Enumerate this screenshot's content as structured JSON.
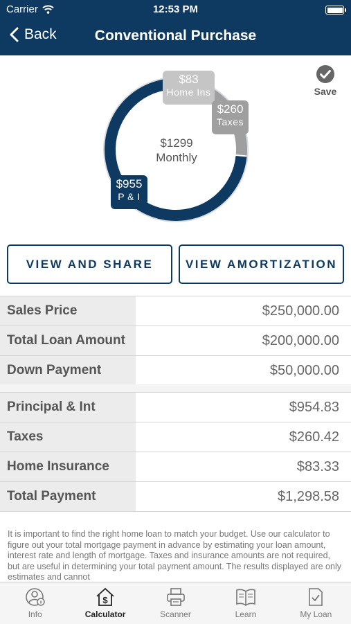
{
  "status_bar": {
    "carrier": "Carrier",
    "time": "12:53 PM"
  },
  "nav": {
    "back_label": "Back",
    "title": "Conventional Purchase"
  },
  "save_label": "Save",
  "summary": {
    "monthly_amount": "$1299",
    "monthly_label": "Monthly",
    "segments": [
      {
        "label": "P & I",
        "amount": "$955",
        "value": 954.83,
        "color": "#0e3a62"
      },
      {
        "label": "Taxes",
        "amount": "$260",
        "value": 260.42,
        "color": "#9f9f9f"
      },
      {
        "label": "Home Ins",
        "amount": "$83",
        "value": 83.33,
        "color": "#c5c5c5"
      }
    ]
  },
  "buttons": {
    "view_share": "VIEW AND SHARE",
    "view_amortization": "VIEW AMORTIZATION"
  },
  "loan_rows": [
    {
      "label": "Sales Price",
      "value": "$250,000.00"
    },
    {
      "label": "Total Loan Amount",
      "value": "$200,000.00"
    },
    {
      "label": "Down Payment",
      "value": "$50,000.00"
    }
  ],
  "payment_rows": [
    {
      "label": "Principal & Int",
      "value": "$954.83"
    },
    {
      "label": "Taxes",
      "value": "$260.42"
    },
    {
      "label": "Home Insurance",
      "value": "$83.33"
    },
    {
      "label": "Total Payment",
      "value": "$1,298.58"
    }
  ],
  "disclaimer": "It is important to find the right home loan to match your budget. Use our calculator to figure out your total mortgage payment in advance by estimating your loan amount, interest rate and length of mortgage. Taxes and insurance amounts are not required, but are useful in determining your total payment amount.  The results displayed are only estimates and cannot",
  "tabs": [
    {
      "label": "Info",
      "icon": "info-person-icon",
      "active": false
    },
    {
      "label": "Calculator",
      "icon": "calculator-house-icon",
      "active": true
    },
    {
      "label": "Scanner",
      "icon": "printer-icon",
      "active": false
    },
    {
      "label": "Learn",
      "icon": "book-icon",
      "active": false
    },
    {
      "label": "My Loan",
      "icon": "document-check-icon",
      "active": false
    }
  ]
}
